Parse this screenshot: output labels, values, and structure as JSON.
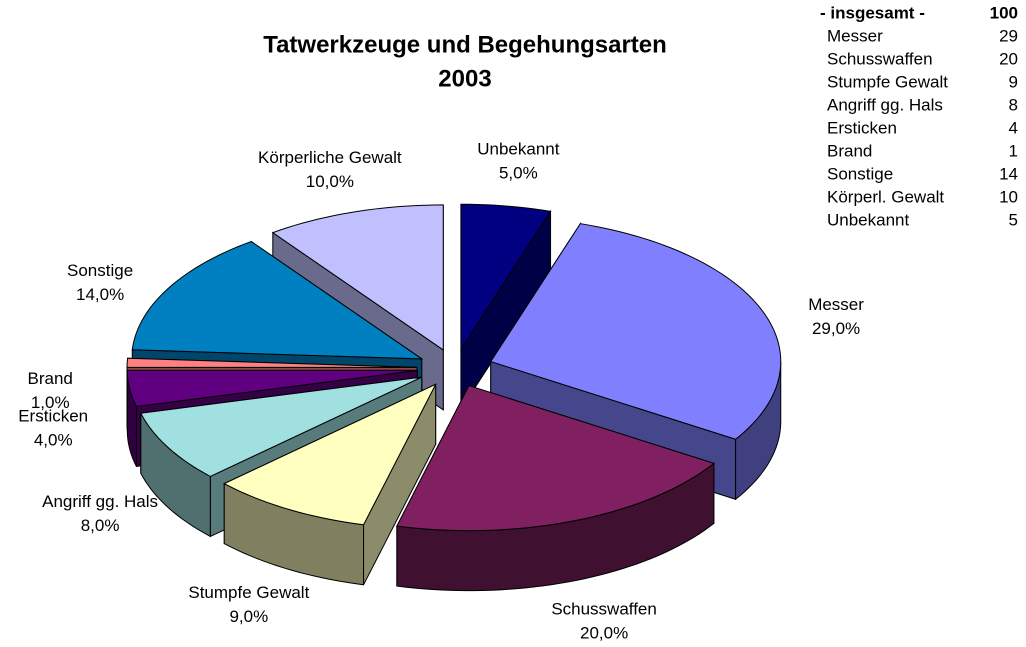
{
  "chart_data": {
    "type": "pie",
    "title": [
      "Tatwerkzeuge und Begehungsarten",
      "2003"
    ],
    "categories": [
      "Messer",
      "Schusswaffen",
      "Stumpfe Gewalt",
      "Angriff gg. Hals",
      "Ersticken",
      "Brand",
      "Sonstige",
      "Körperliche Gewalt",
      "Unbekannt"
    ],
    "values": [
      29,
      20,
      9,
      8,
      4,
      1,
      14,
      10,
      5
    ],
    "value_labels": [
      "29,0%",
      "20,0%",
      "9,0%",
      "8,0%",
      "4,0%",
      "1,0%",
      "14,0%",
      "10,0%",
      "5,0%"
    ],
    "colors": [
      "#8080ff",
      "#802060",
      "#ffffc0",
      "#a0e0e0",
      "#600080",
      "#ff8080",
      "#0080c0",
      "#c0c0ff",
      "#000080"
    ]
  },
  "summary": {
    "header": "- insgesamt -",
    "total": 100,
    "rows": [
      [
        "Messer",
        29
      ],
      [
        "Schusswaffen",
        20
      ],
      [
        "Stumpfe Gewalt",
        9
      ],
      [
        "Angriff gg. Hals",
        8
      ],
      [
        "Ersticken",
        4
      ],
      [
        "Brand",
        1
      ],
      [
        "Sonstige",
        14
      ],
      [
        "Körperl. Gewalt",
        10
      ],
      [
        "Unbekannt",
        5
      ]
    ]
  }
}
